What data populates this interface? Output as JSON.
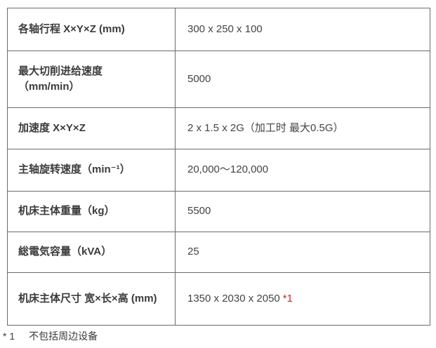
{
  "table": {
    "rows": [
      {
        "label": "各轴行程 X×Y×Z (mm)",
        "value": "300 x 250 x 100"
      },
      {
        "label": "最大切削进给速度\n（mm/min）",
        "value": "5000"
      },
      {
        "label": "加速度 X×Y×Z",
        "value": "2 x 1.5 x 2G（加工时 最大0.5G）"
      },
      {
        "label": "主轴旋转速度（min⁻¹）",
        "value": "20,000～120,000"
      },
      {
        "label": "机床主体重量（kg）",
        "value": "5500"
      },
      {
        "label": "総電気容量（kVA）",
        "value": "25"
      },
      {
        "label": "机床主体尺寸 宽×长×高 (mm)",
        "value": "1350 x 2030 x 2050",
        "note": "*1"
      }
    ]
  },
  "footnote": {
    "marker": "* 1",
    "text": "不包括周边设备"
  },
  "colors": {
    "border": "#6b6b6b",
    "label_text": "#3b3b3b",
    "value_text": "#444444",
    "note_red": "#cc2a2a",
    "background": "#ffffff"
  }
}
